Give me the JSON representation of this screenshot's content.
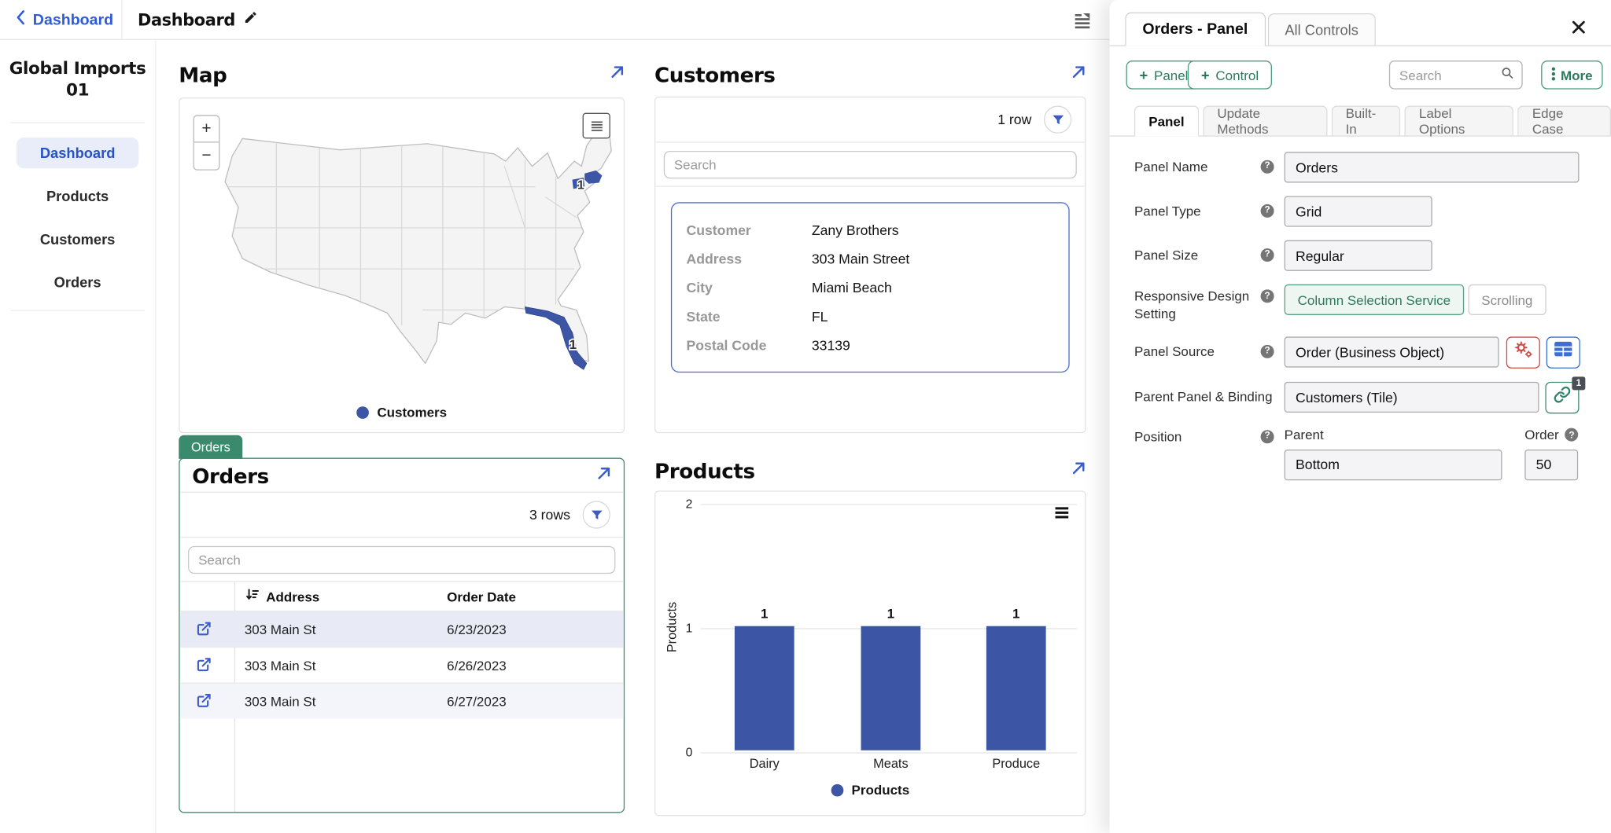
{
  "topbar": {
    "back_label": "Dashboard",
    "title": "Dashboard"
  },
  "sidebar": {
    "app_title": "Global Imports 01",
    "items": [
      {
        "label": "Dashboard",
        "active": true
      },
      {
        "label": "Products",
        "active": false
      },
      {
        "label": "Customers",
        "active": false
      },
      {
        "label": "Orders",
        "active": false
      }
    ]
  },
  "map_panel": {
    "title": "Map",
    "zoom_in_label": "+",
    "zoom_out_label": "−",
    "legend_label": "Customers",
    "regions": [
      {
        "region": "florida",
        "count": "1"
      },
      {
        "region": "new-england",
        "count": "1"
      }
    ]
  },
  "customers_panel": {
    "title": "Customers",
    "rows_count_label": "1 row",
    "search_placeholder": "Search",
    "tile_fields": [
      {
        "label": "Customer",
        "value": "Zany Brothers"
      },
      {
        "label": "Address",
        "value": "303 Main Street"
      },
      {
        "label": "City",
        "value": "Miami Beach"
      },
      {
        "label": "State",
        "value": "FL"
      },
      {
        "label": "Postal Code",
        "value": "33139"
      }
    ]
  },
  "orders_panel": {
    "selection_chip": "Orders",
    "title": "Orders",
    "rows_count_label": "3 rows",
    "search_placeholder": "Search",
    "columns": [
      "Address",
      "Order Date"
    ],
    "rows": [
      {
        "address": "303 Main St",
        "order_date": "6/23/2023",
        "selected": true
      },
      {
        "address": "303 Main St",
        "order_date": "6/26/2023",
        "selected": false
      },
      {
        "address": "303 Main St",
        "order_date": "6/27/2023",
        "selected": false
      }
    ]
  },
  "products_panel": {
    "title": "Products",
    "chart_data": {
      "type": "bar",
      "title": "Products",
      "categories": [
        "Dairy",
        "Meats",
        "Produce"
      ],
      "values": [
        1,
        1,
        1
      ],
      "data_labels": [
        "1",
        "1",
        "1"
      ],
      "xlabel": "",
      "ylabel": "Products",
      "ylim": [
        0,
        2
      ],
      "yticks": [
        "0",
        "1",
        "2"
      ],
      "grid": true,
      "legend": [
        "Products"
      ],
      "legend_position": "bottom",
      "bar_color": "#3c56a5"
    }
  },
  "drawer": {
    "tabs": [
      {
        "label": "Orders - Panel",
        "active": true
      },
      {
        "label": "All Controls",
        "active": false
      }
    ],
    "add_panel_label": "Panel",
    "add_control_label": "Control",
    "search_placeholder": "Search",
    "more_label": "More",
    "subtabs": [
      {
        "label": "Panel",
        "active": true
      },
      {
        "label": "Update Methods",
        "active": false
      },
      {
        "label": "Built-In",
        "active": false
      },
      {
        "label": "Label Options",
        "active": false
      },
      {
        "label": "Edge Case",
        "active": false
      }
    ],
    "fields": {
      "panel_name": {
        "label": "Panel Name",
        "value": "Orders"
      },
      "panel_type": {
        "label": "Panel Type",
        "value": "Grid"
      },
      "panel_size": {
        "label": "Panel Size",
        "value": "Regular"
      },
      "responsive_design": {
        "label": "Responsive Design Setting",
        "options": [
          {
            "label": "Column Selection Service",
            "selected": true
          },
          {
            "label": "Scrolling",
            "selected": false
          }
        ]
      },
      "panel_source": {
        "label": "Panel Source",
        "value": "Order (Business Object)"
      },
      "parent_panel_binding": {
        "label": "Parent Panel & Binding",
        "value": "Customers (Tile)",
        "link_badge": "1"
      },
      "position": {
        "label": "Position",
        "parent_label": "Parent",
        "parent_value": "Bottom",
        "order_label": "Order",
        "order_value": "50"
      }
    }
  },
  "colors": {
    "accent_blue": "#3b5cc9",
    "nav_active_blue": "#2753c5",
    "chart_bar_blue": "#3c56a5",
    "tile_border_blue": "#4b6bd6",
    "accent_green": "#2c7a5c",
    "chip_green": "#3a8a6e",
    "selected_border_green": "#3f8f6f",
    "danger_red": "#d14b47",
    "table_icon_blue": "#3b6fd4",
    "selected_row_bg": "#e8ebf6"
  }
}
